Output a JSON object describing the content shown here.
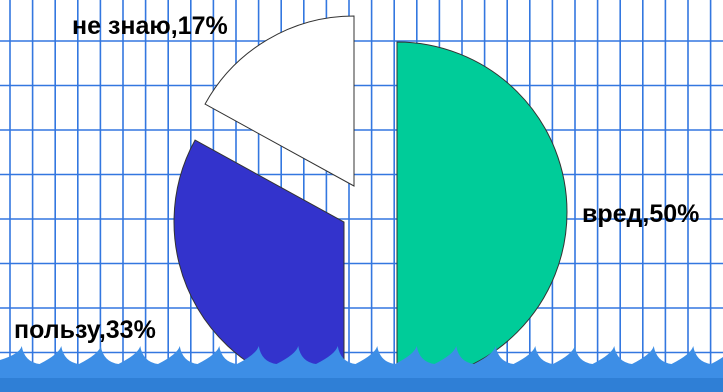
{
  "chart_data": {
    "type": "pie",
    "title": "",
    "slices": [
      {
        "label": "вред,50%",
        "value": 50,
        "color": "#00cc99"
      },
      {
        "label": "пользу,33%",
        "value": 33,
        "color": "#3333cc"
      },
      {
        "label": "не знаю,17%",
        "value": 17,
        "color": "#ffffff"
      }
    ],
    "exploded": true,
    "legend": "none"
  },
  "background": {
    "style": "graph-paper grid with blue wave border at bottom",
    "grid_color": "#3377e0",
    "wave_color": "#3d8ee6"
  }
}
